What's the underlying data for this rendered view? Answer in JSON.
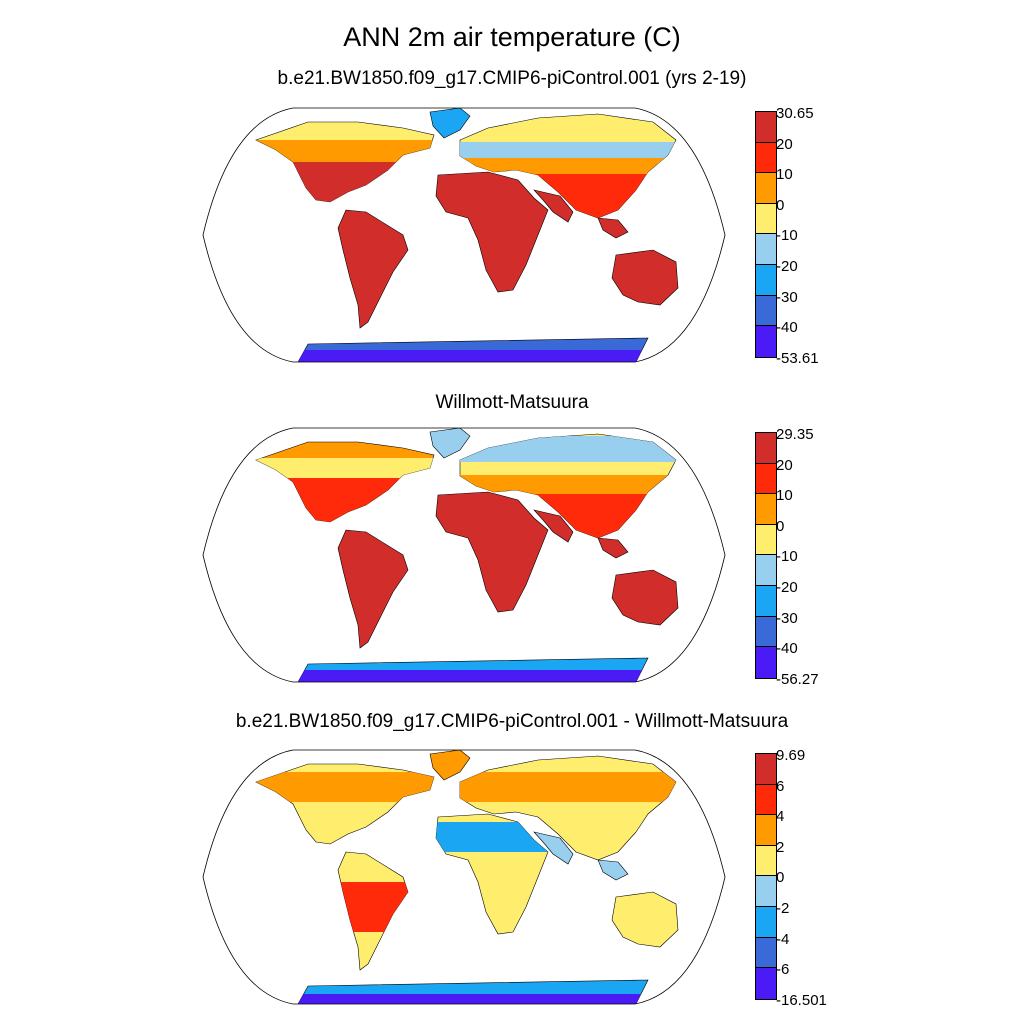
{
  "figure": {
    "title": "ANN 2m air temperature (C)"
  },
  "palette": [
    "#4b1bf5",
    "#3a6ad8",
    "#1aa6f2",
    "#98cfee",
    "#ffed6e",
    "#ff9a00",
    "#ff2a0a",
    "#d12d2b"
  ],
  "panels": [
    {
      "title": "b.e21.BW1850.f09_g17.CMIP6-piControl.001 (yrs 2-19)",
      "colorbar_labels": [
        "30.65",
        "20",
        "10",
        "0",
        "-10",
        "-20",
        "-30",
        "-40",
        "-53.61"
      ],
      "colorbar_range": [
        -53.61,
        30.65
      ]
    },
    {
      "title": "Willmott-Matsuura",
      "colorbar_labels": [
        "29.35",
        "20",
        "10",
        "0",
        "-10",
        "-20",
        "-30",
        "-40",
        "-56.27"
      ],
      "colorbar_range": [
        -56.27,
        29.35
      ]
    },
    {
      "title": "b.e21.BW1850.f09_g17.CMIP6-piControl.001 - Willmott-Matsuura",
      "colorbar_labels": [
        "9.69",
        "6",
        "4",
        "2",
        "0",
        "-2",
        "-4",
        "-6",
        "-16.501"
      ],
      "colorbar_range": [
        -16.501,
        9.69
      ]
    }
  ]
}
